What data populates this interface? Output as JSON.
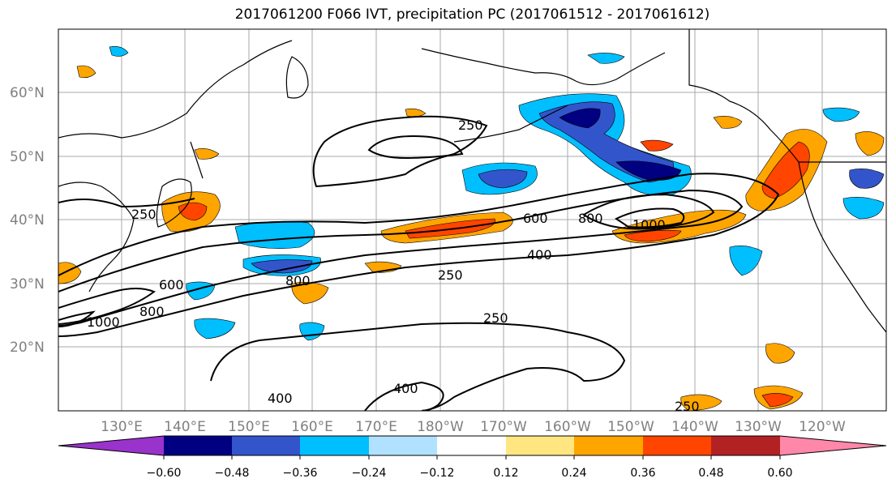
{
  "title": "2017061200 F066 IVT, precipitation PC (2017061512 - 2017061612)",
  "map": {
    "projection": "PlateCarree",
    "extent_lon": [
      120,
      250
    ],
    "extent_lat": [
      10,
      70
    ],
    "lat_labels": [
      "20°N",
      "30°N",
      "40°N",
      "50°N",
      "60°N"
    ],
    "lon_labels": [
      "130°E",
      "140°E",
      "150°E",
      "160°E",
      "170°E",
      "180°W",
      "170°W",
      "160°W",
      "150°W",
      "140°W",
      "130°W",
      "120°W"
    ],
    "grid": true
  },
  "ivt_contours": {
    "levels": [
      250,
      400,
      600,
      800,
      1000
    ],
    "labels": [
      "250",
      "250",
      "250",
      "250",
      "250",
      "400",
      "400",
      "400",
      "600",
      "600",
      "800",
      "800",
      "800",
      "1000",
      "1000"
    ]
  },
  "colorbar": {
    "tick_labels": [
      "−0.60",
      "−0.48",
      "−0.36",
      "−0.24",
      "−0.12",
      "0.12",
      "0.24",
      "0.36",
      "0.48",
      "0.60"
    ],
    "colors": [
      "#9933cc",
      "#000080",
      "#3355cc",
      "#00bfff",
      "#b0e2ff",
      "#ffffff",
      "#ffe680",
      "#ffa500",
      "#ff4500",
      "#b22222",
      "#ff88aa"
    ]
  }
}
